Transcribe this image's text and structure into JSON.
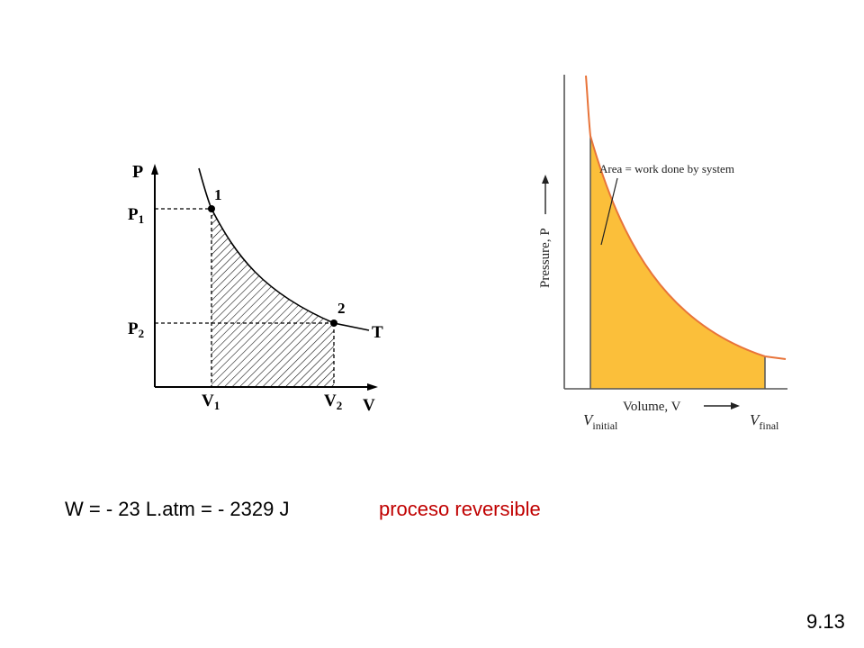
{
  "left_diagram": {
    "axis_p": "P",
    "axis_v": "V",
    "p1": {
      "base": "P",
      "sub": "1"
    },
    "p2": {
      "base": "P",
      "sub": "2"
    },
    "v1": {
      "base": "V",
      "sub": "1"
    },
    "v2": {
      "base": "V",
      "sub": "2"
    },
    "point1": "1",
    "point2": "2",
    "isotherm_label": "T"
  },
  "right_diagram": {
    "ylabel": "Pressure, P",
    "xlabel": "Volume, V",
    "annotation": "Area = work done by system",
    "v_initial": {
      "base": "V",
      "sub": "initial"
    },
    "v_final": {
      "base": "V",
      "sub": "final"
    },
    "fill_color": "#fbbf3a",
    "curve_color": "#e8743a"
  },
  "formula": "W = - 23 L.atm = - 2329 J",
  "process_label": "proceso reversible",
  "process_color": "#c00000",
  "slide_number": "9.13"
}
